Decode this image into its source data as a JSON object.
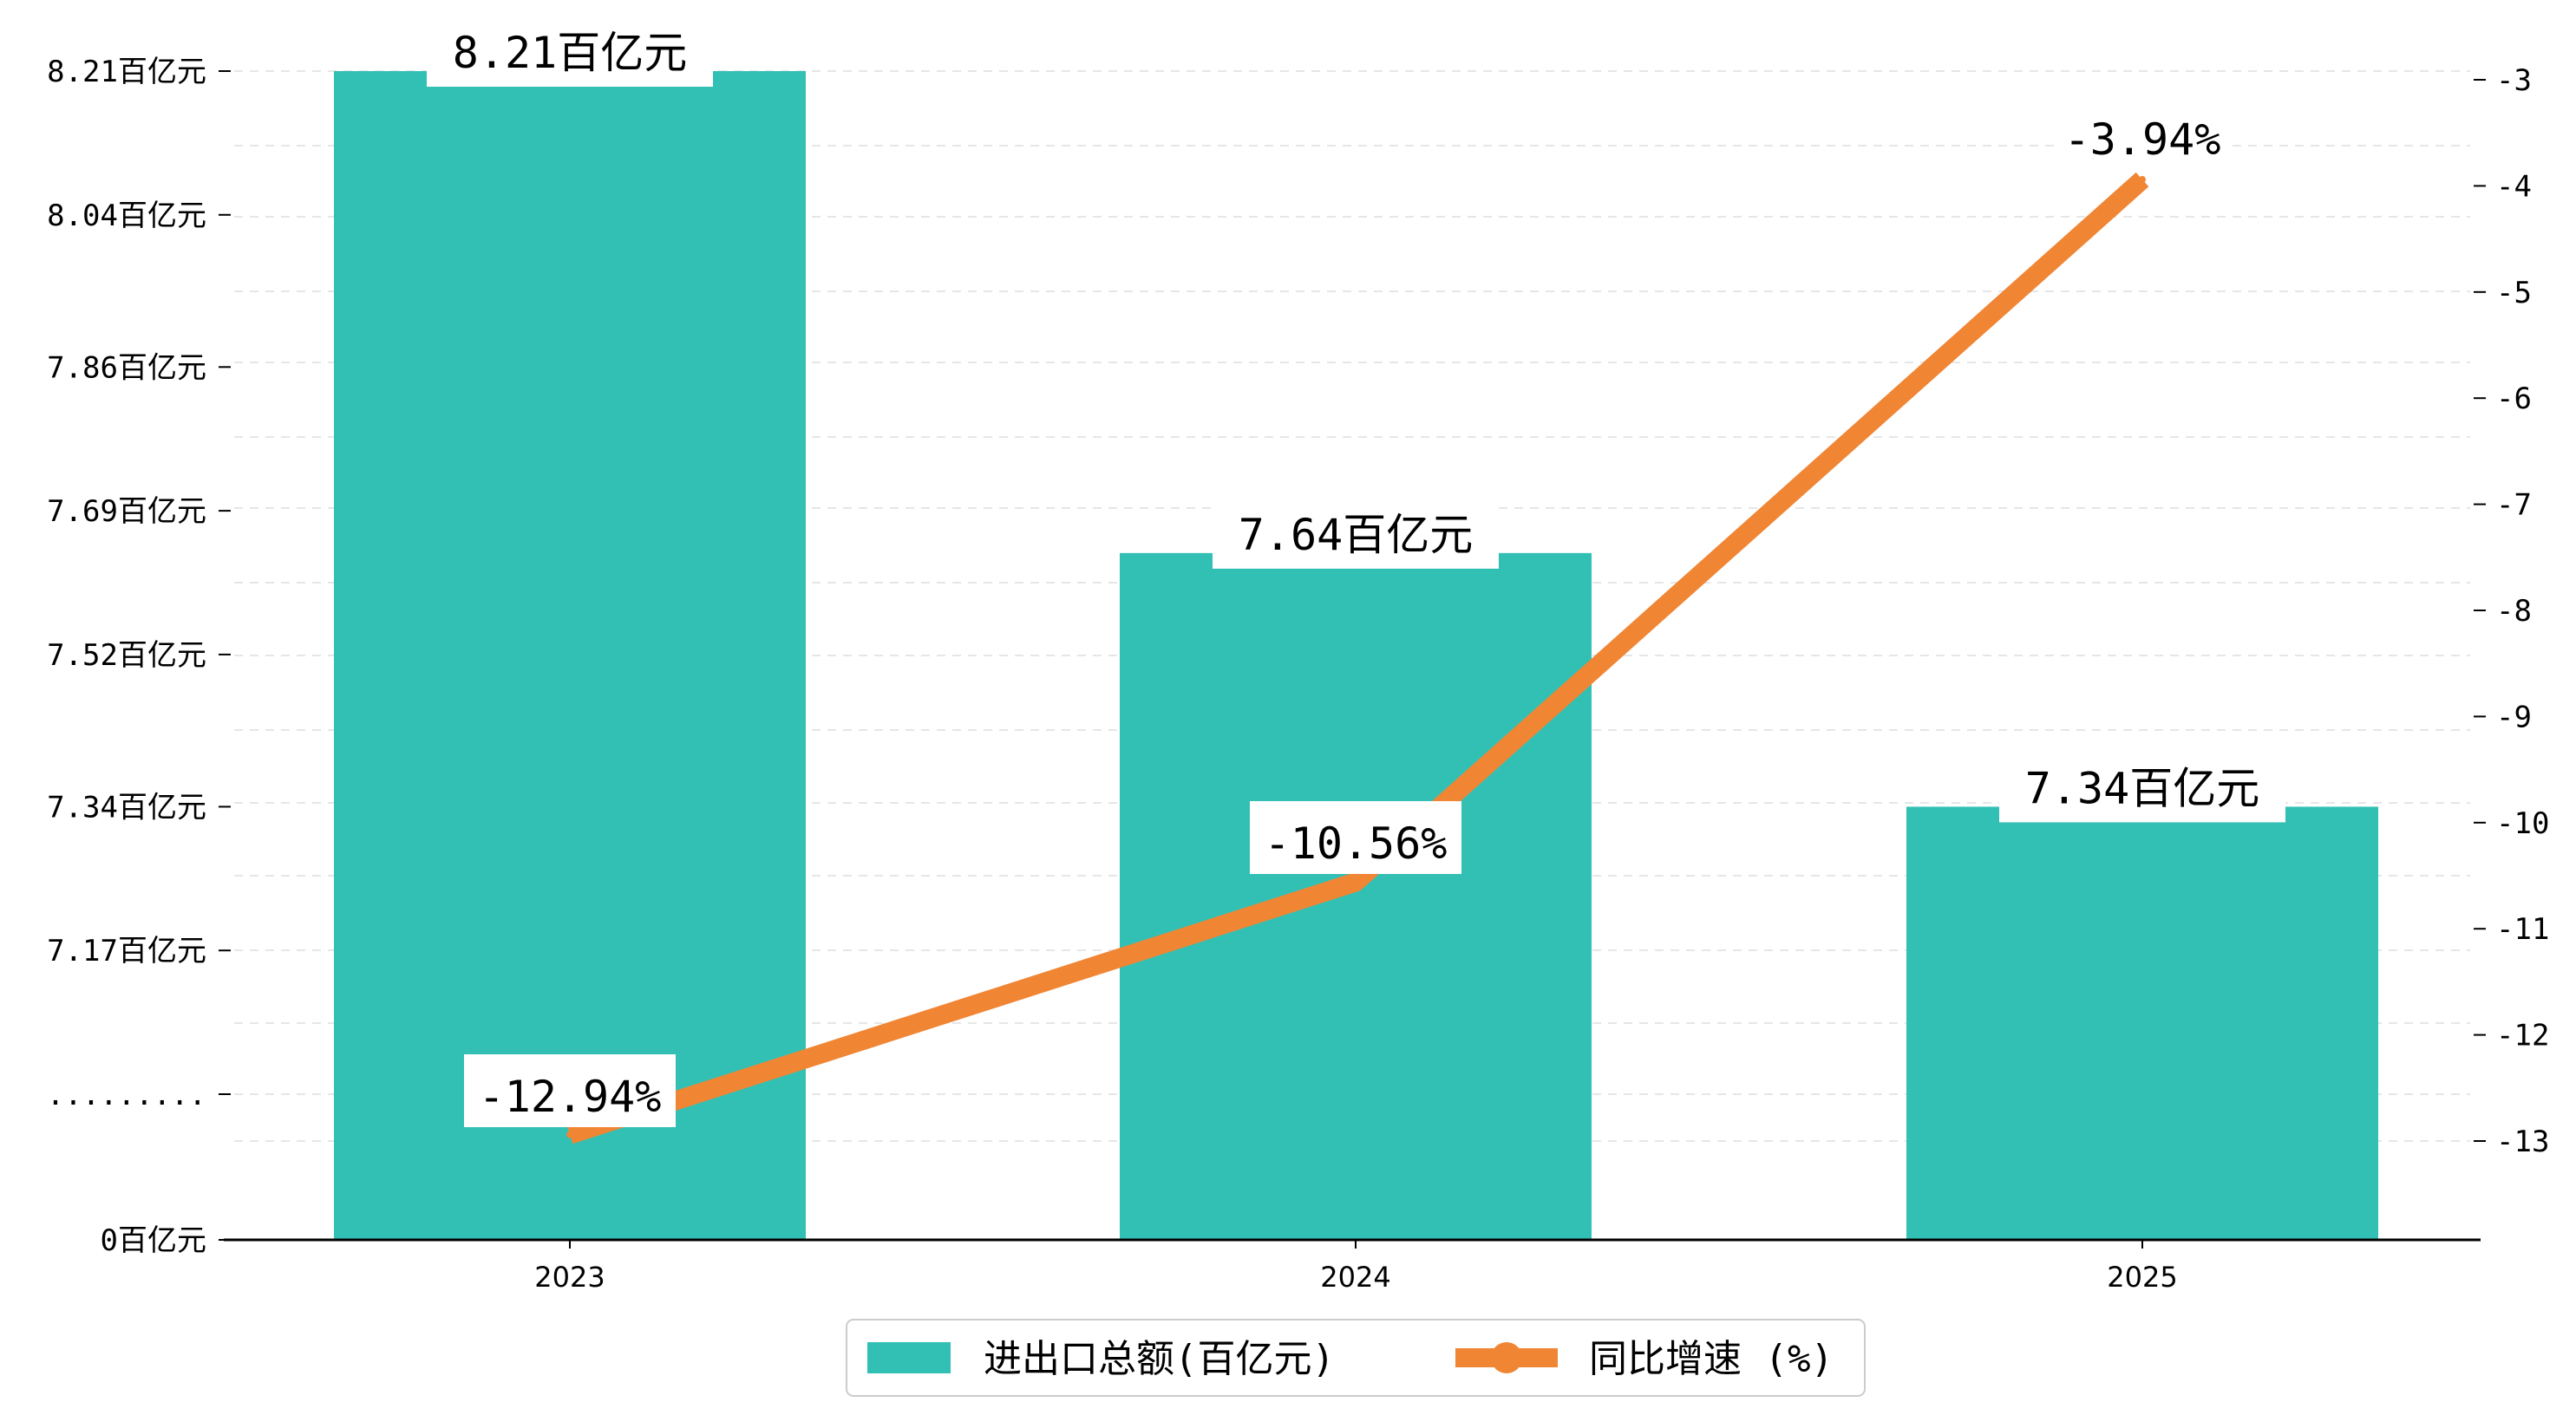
{
  "chart_data": {
    "type": "bar+line",
    "categories": [
      "2023",
      "2024",
      "2025"
    ],
    "bar_series": {
      "name": "进出口总额(百亿元)",
      "values": [
        8.21,
        7.64,
        7.34
      ],
      "labels": [
        "8.21百亿元",
        "7.64百亿元",
        "7.34百亿元"
      ],
      "color": "#33c0b4"
    },
    "line_series": {
      "name": "同比增速 (%)",
      "values": [
        -12.94,
        -10.56,
        -3.94
      ],
      "labels": [
        "-12.94%",
        "-10.56%",
        "-3.94%"
      ],
      "color": "#f08534"
    },
    "left_axis": {
      "ticks": [
        {
          "value": 0,
          "label": "0百亿元"
        },
        {
          "value": 7.0,
          "label": "........."
        },
        {
          "value": 7.17,
          "label": "7.17百亿元"
        },
        {
          "value": 7.34,
          "label": "7.34百亿元"
        },
        {
          "value": 7.52,
          "label": "7.52百亿元"
        },
        {
          "value": 7.69,
          "label": "7.69百亿元"
        },
        {
          "value": 7.86,
          "label": "7.86百亿元"
        },
        {
          "value": 8.04,
          "label": "8.04百亿元"
        },
        {
          "value": 8.21,
          "label": "8.21百亿元"
        }
      ],
      "broken_axis": true
    },
    "right_axis": {
      "ylim": [
        -13.94,
        -2.94
      ],
      "ticks": [
        -3,
        -4,
        -5,
        -6,
        -7,
        -8,
        -9,
        -10,
        -11,
        -12,
        -13
      ]
    },
    "grid": "horizontal-dashed",
    "legend_position": "bottom-center"
  }
}
